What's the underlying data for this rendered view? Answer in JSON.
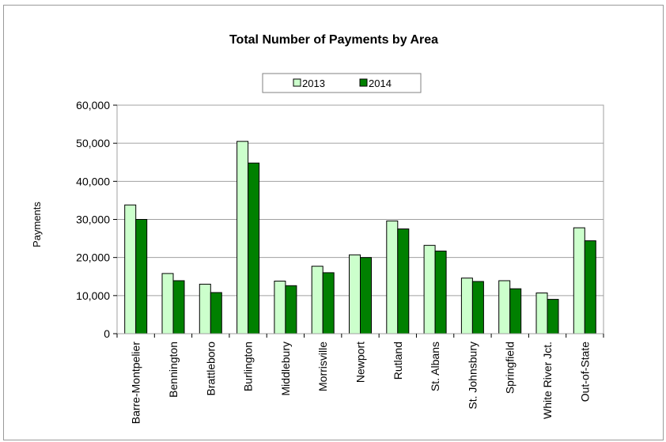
{
  "chart_data": {
    "type": "bar",
    "title": "Total Number of Payments by Area",
    "xlabel": "",
    "ylabel": "Payments",
    "ylim": [
      0,
      60000
    ],
    "yticks": [
      "0",
      "10,000",
      "20,000",
      "30,000",
      "40,000",
      "50,000",
      "60,000"
    ],
    "ytick_values": [
      0,
      10000,
      20000,
      30000,
      40000,
      50000,
      60000
    ],
    "grid": true,
    "legend_position": "top",
    "categories": [
      "Barre-Montpelier",
      "Bennington",
      "Brattleboro",
      "Burlington",
      "Middlebury",
      "Morrisville",
      "Newport",
      "Rutland",
      "St. Albans",
      "St. Johnsbury",
      "Springfield",
      "White River Jct.",
      "Out-of-State"
    ],
    "series": [
      {
        "name": "2013",
        "color": "#ccffcc",
        "values": [
          33800,
          15800,
          13000,
          50500,
          13800,
          17700,
          20700,
          29600,
          23200,
          14600,
          13900,
          10700,
          27800
        ]
      },
      {
        "name": "2014",
        "color": "#008000",
        "values": [
          30000,
          13900,
          10800,
          44800,
          12600,
          16000,
          20000,
          27500,
          21700,
          13700,
          11800,
          9000,
          24400
        ]
      }
    ]
  }
}
